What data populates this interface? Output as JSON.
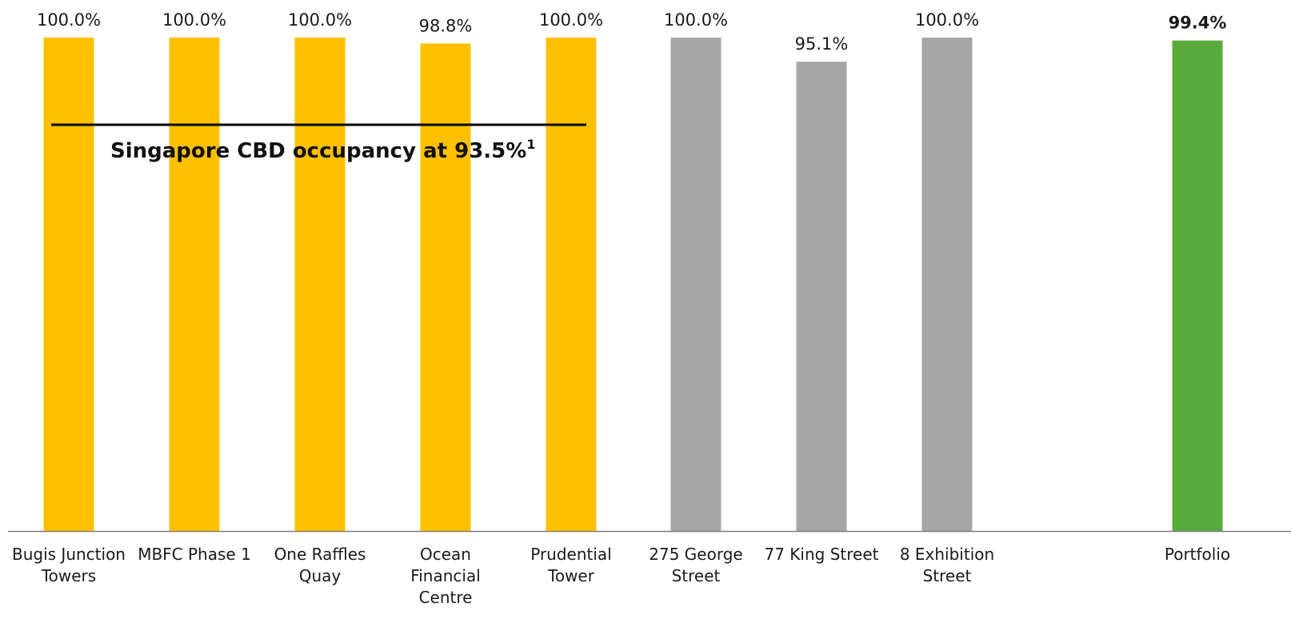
{
  "chart_data": {
    "type": "bar",
    "categories": [
      [
        "Bugis Junction",
        "Towers"
      ],
      [
        "MBFC Phase 1"
      ],
      [
        "One Raffles",
        "Quay"
      ],
      [
        "Ocean",
        "Financial",
        "Centre"
      ],
      [
        "Prudential",
        "Tower"
      ],
      [
        "275 George",
        "Street"
      ],
      [
        "77 King Street"
      ],
      [
        "8 Exhibition",
        "Street"
      ],
      [
        "Portfolio"
      ]
    ],
    "values": [
      100.0,
      100.0,
      100.0,
      98.8,
      100.0,
      100.0,
      95.1,
      100.0,
      99.4
    ],
    "value_labels": [
      "100.0%",
      "100.0%",
      "100.0%",
      "98.8%",
      "100.0%",
      "100.0%",
      "95.1%",
      "100.0%",
      "99.4%"
    ],
    "bar_colors": [
      "#FFC000",
      "#FFC000",
      "#FFC000",
      "#FFC000",
      "#FFC000",
      "#A6A6A6",
      "#A6A6A6",
      "#A6A6A6",
      "#5AAA3C"
    ],
    "bold_labels": [
      false,
      false,
      false,
      false,
      false,
      false,
      false,
      false,
      true
    ],
    "ylim": [
      0,
      100
    ],
    "grid": false,
    "legend": "none",
    "reference_line": {
      "value": 93.5,
      "label": "Singapore CBD occupancy at 93.5%",
      "superscript": "1",
      "color": "#000000",
      "span_categories": [
        0,
        4
      ]
    },
    "axis_color": "#808080"
  }
}
